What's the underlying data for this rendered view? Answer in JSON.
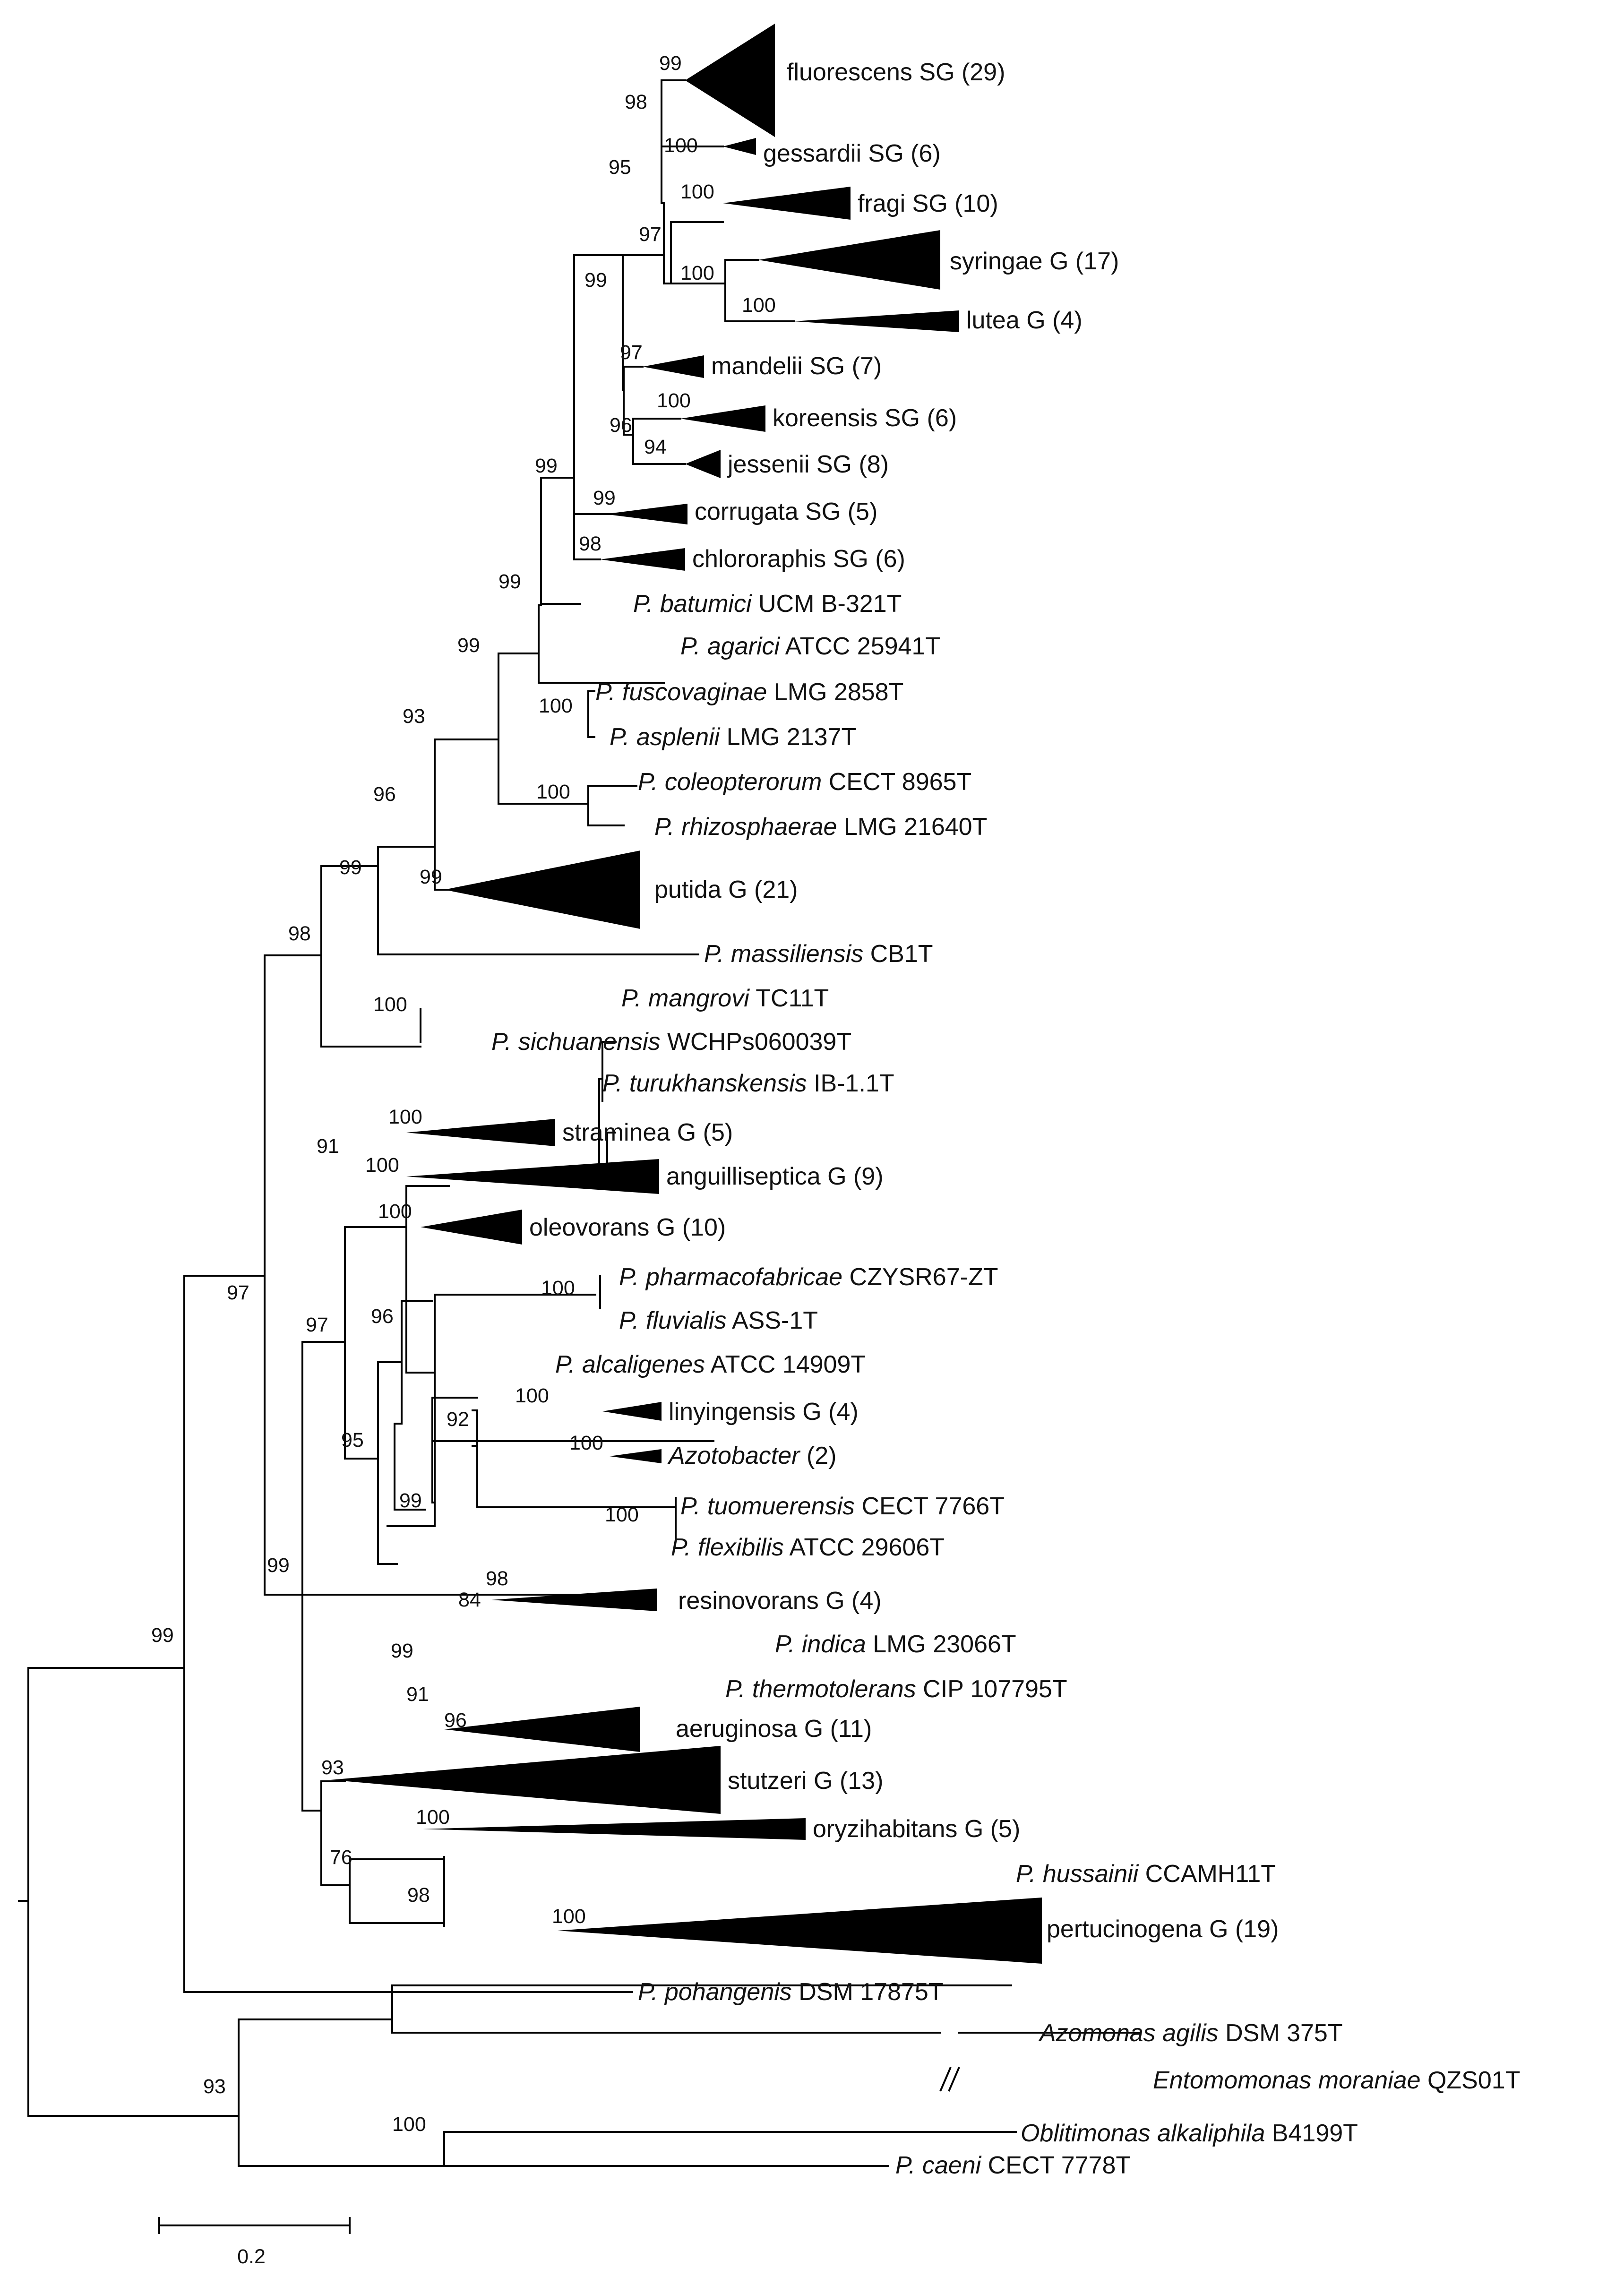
{
  "figure": {
    "type": "phylogenetic-tree",
    "scale_bar_label": "0.2",
    "colors": {
      "line": "#000000",
      "text": "#111111",
      "background": "#ffffff"
    }
  },
  "tips": [
    {
      "id": "fluorescens",
      "prefix": "",
      "italic": "",
      "text": "fluorescens SG (29)"
    },
    {
      "id": "gessardii",
      "prefix": "",
      "italic": "",
      "text": "gessardii SG (6)"
    },
    {
      "id": "fragi",
      "prefix": "",
      "italic": "",
      "text": "fragi SG (10)"
    },
    {
      "id": "syringae",
      "prefix": "",
      "italic": "",
      "text": "syringae G (17)"
    },
    {
      "id": "lutea",
      "prefix": "",
      "italic": "",
      "text": "lutea G (4)"
    },
    {
      "id": "mandelii",
      "prefix": "",
      "italic": "",
      "text": "mandelii SG (7)"
    },
    {
      "id": "koreensis",
      "prefix": "",
      "italic": "",
      "text": "koreensis SG (6)"
    },
    {
      "id": "jessenii",
      "prefix": "",
      "italic": "",
      "text": "jessenii SG (8)"
    },
    {
      "id": "corrugata",
      "prefix": "",
      "italic": "",
      "text": "corrugata SG (5)"
    },
    {
      "id": "chlororaphis",
      "prefix": "",
      "italic": "",
      "text": "chlororaphis SG (6)"
    },
    {
      "id": "batumici",
      "prefix": "",
      "italic": "P. batumici",
      "text": " UCM B-321T"
    },
    {
      "id": "agarici",
      "prefix": "",
      "italic": "P. agarici",
      "text": " ATCC 25941T"
    },
    {
      "id": "fuscovaginae",
      "prefix": "",
      "italic": "P. fuscovaginae",
      "text": " LMG 2858T"
    },
    {
      "id": "asplenii",
      "prefix": "",
      "italic": "P. asplenii",
      "text": " LMG 2137T"
    },
    {
      "id": "coleopterorum",
      "prefix": "",
      "italic": "P. coleopterorum",
      "text": " CECT 8965T"
    },
    {
      "id": "rhizosphaerae",
      "prefix": "",
      "italic": "P. rhizosphaerae",
      "text": " LMG 21640T"
    },
    {
      "id": "putida",
      "prefix": "",
      "italic": "",
      "text": "putida G (21)"
    },
    {
      "id": "massiliensis",
      "prefix": "",
      "italic": "P. massiliensis",
      "text": " CB1T"
    },
    {
      "id": "mangrovi",
      "prefix": "",
      "italic": "P. mangrovi",
      "text": " TC11T"
    },
    {
      "id": "sichuanensis",
      "prefix": "",
      "italic": "P. sichuanensis",
      "text": " WCHPs060039T"
    },
    {
      "id": "turukhanskensis",
      "prefix": "",
      "italic": "P. turukhanskensis",
      "text": " IB-1.1T"
    },
    {
      "id": "straminea",
      "prefix": "",
      "italic": "",
      "text": "straminea G (5)"
    },
    {
      "id": "anguilliseptica",
      "prefix": "",
      "italic": "",
      "text": "anguilliseptica G (9)"
    },
    {
      "id": "oleovorans",
      "prefix": "",
      "italic": "",
      "text": "oleovorans G (10)"
    },
    {
      "id": "pharmacofabricae",
      "prefix": "",
      "italic": "P. pharmacofabricae",
      "text": " CZYSR67-ZT"
    },
    {
      "id": "fluvialis",
      "prefix": "",
      "italic": "P. fluvialis",
      "text": " ASS-1T"
    },
    {
      "id": "alcaligenes",
      "prefix": "",
      "italic": "P. alcaligenes",
      "text": " ATCC 14909T"
    },
    {
      "id": "linyingensis",
      "prefix": "",
      "italic": "",
      "text": "linyingensis G (4)"
    },
    {
      "id": "azotobacter",
      "prefix": "",
      "italic": "Azotobacter",
      "text": " (2)"
    },
    {
      "id": "tuomuerensis",
      "prefix": "",
      "italic": "P. tuomuerensis",
      "text": " CECT 7766T"
    },
    {
      "id": "flexibilis",
      "prefix": "",
      "italic": "P. flexibilis",
      "text": " ATCC 29606T"
    },
    {
      "id": "resinovorans",
      "prefix": "",
      "italic": "",
      "text": "resinovorans G (4)"
    },
    {
      "id": "indica",
      "prefix": "",
      "italic": "P. indica",
      "text": " LMG 23066T"
    },
    {
      "id": "thermotolerans",
      "prefix": "",
      "italic": "P. thermotolerans",
      "text": " CIP 107795T"
    },
    {
      "id": "aeruginosa",
      "prefix": "",
      "italic": "",
      "text": "aeruginosa G (11)"
    },
    {
      "id": "stutzeri",
      "prefix": "",
      "italic": "",
      "text": "stutzeri G (13)"
    },
    {
      "id": "oryzihabitans",
      "prefix": "",
      "italic": "",
      "text": "oryzihabitans G (5)"
    },
    {
      "id": "hussainii",
      "prefix": "",
      "italic": "P. hussainii",
      "text": " CCAMH11T"
    },
    {
      "id": "pertucinogena",
      "prefix": "",
      "italic": "",
      "text": "pertucinogena G (19)"
    },
    {
      "id": "pohangenis",
      "prefix": "",
      "italic": "P. pohangenis",
      "text": " DSM 17875T"
    },
    {
      "id": "azomonas",
      "prefix": "",
      "italic": "Azomonas agilis",
      "text": " DSM 375T"
    },
    {
      "id": "entomomonas",
      "prefix": "",
      "italic": "Entomomonas moraniae",
      "text": " QZS01T"
    },
    {
      "id": "oblitimonas",
      "prefix": "",
      "italic": "Oblitimonas alkaliphila",
      "text": " B4199T"
    },
    {
      "id": "caeni",
      "prefix": "",
      "italic": "P. caeni",
      "text": " CECT 7778T"
    }
  ],
  "supports": [
    {
      "id": "s-fluorescens",
      "value": "99"
    },
    {
      "id": "s-flu-gess",
      "value": "98"
    },
    {
      "id": "s-gessardii",
      "value": "100"
    },
    {
      "id": "s-95",
      "value": "95"
    },
    {
      "id": "s-fragi",
      "value": "100"
    },
    {
      "id": "s-97a",
      "value": "97"
    },
    {
      "id": "s-syr-lut",
      "value": "100"
    },
    {
      "id": "s-lutea",
      "value": "100"
    },
    {
      "id": "s-99a",
      "value": "99"
    },
    {
      "id": "s-mandelii",
      "value": "97"
    },
    {
      "id": "s-koreensis",
      "value": "100"
    },
    {
      "id": "s-96a",
      "value": "96"
    },
    {
      "id": "s-94",
      "value": "94"
    },
    {
      "id": "s-corrugata",
      "value": "99"
    },
    {
      "id": "s-chlororaphis",
      "value": "98"
    },
    {
      "id": "s-99b",
      "value": "99"
    },
    {
      "id": "s-99c",
      "value": "99"
    },
    {
      "id": "s-99d",
      "value": "99"
    },
    {
      "id": "s-fusc",
      "value": "100"
    },
    {
      "id": "s-93a",
      "value": "93"
    },
    {
      "id": "s-cole",
      "value": "100"
    },
    {
      "id": "s-96b",
      "value": "96"
    },
    {
      "id": "s-putida",
      "value": "99"
    },
    {
      "id": "s-99e",
      "value": "99"
    },
    {
      "id": "s-98a",
      "value": "98"
    },
    {
      "id": "s-mangrovi",
      "value": "100"
    },
    {
      "id": "s-straminea",
      "value": "100"
    },
    {
      "id": "s-91a",
      "value": "91"
    },
    {
      "id": "s-anguilliseptica",
      "value": "100"
    },
    {
      "id": "s-oleovorans",
      "value": "100"
    },
    {
      "id": "s-97b",
      "value": "97"
    },
    {
      "id": "s-96c",
      "value": "96"
    },
    {
      "id": "s-pharma",
      "value": "100"
    },
    {
      "id": "s-linyingensis",
      "value": "100"
    },
    {
      "id": "s-92",
      "value": "92"
    },
    {
      "id": "s-azotobacter",
      "value": "100"
    },
    {
      "id": "s-95b",
      "value": "95"
    },
    {
      "id": "s-99f",
      "value": "99"
    },
    {
      "id": "s-tuom",
      "value": "100"
    },
    {
      "id": "s-resinovorans",
      "value": "98"
    },
    {
      "id": "s-84",
      "value": "84"
    },
    {
      "id": "s-99g",
      "value": "99"
    },
    {
      "id": "s-91b",
      "value": "91"
    },
    {
      "id": "s-aeruginosa",
      "value": "96"
    },
    {
      "id": "s-stutzeri",
      "value": "93"
    },
    {
      "id": "s-oryzihabitans",
      "value": "100"
    },
    {
      "id": "s-76",
      "value": "76"
    },
    {
      "id": "s-98b",
      "value": "98"
    },
    {
      "id": "s-pertucinogena",
      "value": "100"
    },
    {
      "id": "s-97c",
      "value": "97"
    },
    {
      "id": "s-99h",
      "value": "99"
    },
    {
      "id": "s-99i",
      "value": "99"
    },
    {
      "id": "s-93b",
      "value": "93"
    },
    {
      "id": "s-oblitimonas",
      "value": "100"
    }
  ]
}
